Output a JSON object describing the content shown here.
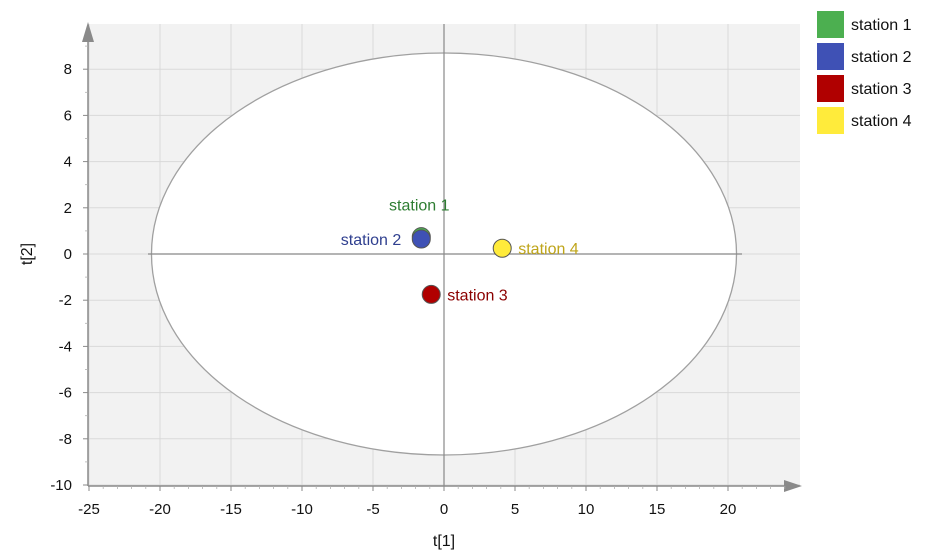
{
  "chart_data": {
    "type": "scatter",
    "xlabel": "t[1]",
    "ylabel": "t[2]",
    "xlim": [
      -25,
      25
    ],
    "ylim": [
      -10,
      10
    ],
    "x_ticks": [
      "-25",
      "-20",
      "-15",
      "-10",
      "-5",
      "0",
      "5",
      "10",
      "15",
      "20"
    ],
    "y_ticks": [
      "-10",
      "-8",
      "-6",
      "-4",
      "-2",
      "0",
      "2",
      "4",
      "6",
      "8"
    ],
    "grid": true,
    "legend_position": "top-right",
    "confidence_ellipse": {
      "center": [
        0,
        0
      ],
      "x_radius": 20.6,
      "y_radius": 8.7
    },
    "series": [
      {
        "name": "station 1",
        "color": "#4caf50",
        "label_color": "#2e7d32",
        "x": -1.6,
        "y": 0.75
      },
      {
        "name": "station 2",
        "color": "#3f51b5",
        "label_color": "#2f3f8f",
        "x": -1.6,
        "y": 0.65
      },
      {
        "name": "station 3",
        "color": "#b00000",
        "label_color": "#8b0000",
        "x": -0.9,
        "y": -1.75
      },
      {
        "name": "station 4",
        "color": "#ffeb3b",
        "label_color": "#bfa51a",
        "x": 4.1,
        "y": 0.25
      }
    ]
  }
}
